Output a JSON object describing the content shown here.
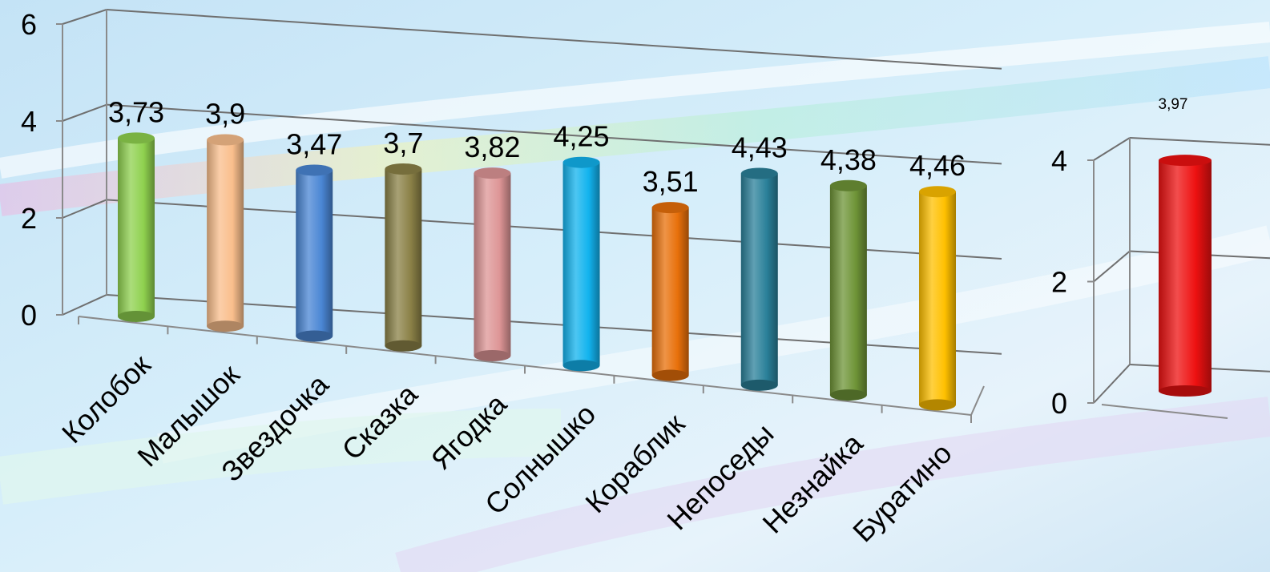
{
  "chart_data": [
    {
      "type": "bar",
      "style": "3d-cylinder",
      "categories": [
        "Колобок",
        "Малышок",
        "Звездочка",
        "Сказка",
        "Ягодка",
        "Солнышко",
        "Кораблик",
        "Непоседы",
        "Незнайка",
        "Буратино"
      ],
      "values": [
        3.73,
        3.9,
        3.47,
        3.7,
        3.82,
        4.25,
        3.51,
        4.43,
        4.38,
        4.46
      ],
      "value_labels": [
        "3,73",
        "3,9",
        "3,47",
        "3,7",
        "3,82",
        "4,25",
        "3,51",
        "4,43",
        "4,38",
        "4,46"
      ],
      "colors": [
        "#8fd14f",
        "#f9be8c",
        "#4a86d4",
        "#8b8147",
        "#dd9596",
        "#12b3ee",
        "#e8700a",
        "#2a8099",
        "#6e9437",
        "#ffc000"
      ],
      "ylim": [
        0,
        6
      ],
      "yticks": [
        "0",
        "2",
        "4",
        "6"
      ],
      "grid": true,
      "title": "",
      "xlabel": "",
      "ylabel": ""
    },
    {
      "type": "bar",
      "style": "3d-cylinder",
      "categories": [
        ""
      ],
      "values": [
        3.97
      ],
      "value_labels": [
        "3,97"
      ],
      "colors": [
        "#ee1111"
      ],
      "ylim": [
        0,
        4
      ],
      "yticks": [
        "0",
        "2",
        "4"
      ],
      "grid": true,
      "title": "",
      "xlabel": "",
      "ylabel": ""
    }
  ]
}
